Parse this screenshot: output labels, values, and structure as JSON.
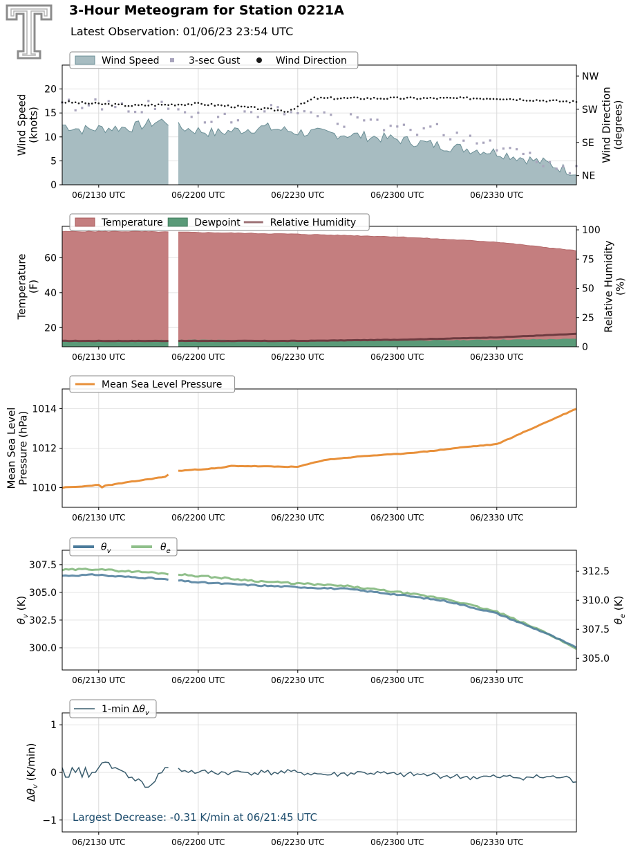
{
  "header": {
    "title": "3-Hour Meteogram for Station 0221A",
    "subtitle": "Latest Observation: 01/06/23 23:54 UTC",
    "logo_text": "T"
  },
  "colors": {
    "wind_fill": "#a7bcc1",
    "wind_line": "#6b8f96",
    "gust": "#a9a5bd",
    "direction": "#1a1a1a",
    "temperature": "#c47e7f",
    "dewpoint": "#5a9a78",
    "rh": "#6e3b40",
    "pressure": "#e8903a",
    "theta_v": "#4a7a9a",
    "theta_e": "#8fbf8a",
    "delta": "#3a5d6e",
    "annotation": "#1f4e6e",
    "logo": "#8c8c8c"
  },
  "x_ticks": [
    "06/2130 UTC",
    "06/2200 UTC",
    "06/2230 UTC",
    "06/2300 UTC",
    "06/2330 UTC"
  ],
  "chart_data": [
    {
      "type": "area",
      "panel": "wind",
      "x_range": [
        "06/21:19",
        "06/23:54"
      ],
      "ylabel": "Wind Speed\n(knots)",
      "ylabel2": "Wind Direction\n(degrees)",
      "ylim": [
        0,
        25
      ],
      "yticks": [
        "0",
        "5",
        "10",
        "15",
        "20"
      ],
      "y2_ticks": [
        "NE",
        "SE",
        "SW",
        "NW"
      ],
      "y2_values": [
        45,
        135,
        225,
        315
      ],
      "legend": [
        "Wind Speed",
        "3-sec Gust",
        "Wind Direction"
      ],
      "gaps": [
        [
          "06/21:31",
          "06/21:32"
        ],
        [
          "06/21:51",
          "06/21:54"
        ],
        [
          "06/22:07",
          "06/22:08"
        ],
        [
          "06/22:10",
          "06/22:11"
        ],
        [
          "06/22:12",
          "06/22:13"
        ]
      ],
      "series": [
        {
          "name": "Wind Speed",
          "x": [
            "06/21:19",
            "06/21:25",
            "06/21:31",
            "06/21:40",
            "06/21:50",
            "06/21:54",
            "06/22:05",
            "06/22:13",
            "06/22:20",
            "06/22:30",
            "06/22:45",
            "06/23:00",
            "06/23:15",
            "06/23:30",
            "06/23:45",
            "06/23:54"
          ],
          "values": [
            12.5,
            11.5,
            11.8,
            12.0,
            13.5,
            12.0,
            10.8,
            11.5,
            12.0,
            11.0,
            10.5,
            9.5,
            8.0,
            6.8,
            4.5,
            2.5
          ]
        },
        {
          "name": "3-sec Gust",
          "x": [
            "06/21:19",
            "06/21:30",
            "06/21:40",
            "06/21:50",
            "06/22:00",
            "06/22:10",
            "06/22:20",
            "06/22:30",
            "06/22:40",
            "06/22:50",
            "06/23:00",
            "06/23:10",
            "06/23:20",
            "06/23:30",
            "06/23:40",
            "06/23:54"
          ],
          "values": [
            16.5,
            17.0,
            16.5,
            16.0,
            14.5,
            14.5,
            15.5,
            15.0,
            14.0,
            13.0,
            12.5,
            11.5,
            10.5,
            8.5,
            6.0,
            3.5
          ]
        },
        {
          "name": "Wind Direction",
          "x": [
            "06/21:19",
            "06/21:40",
            "06/22:00",
            "06/22:15",
            "06/22:27",
            "06/22:35",
            "06/23:00",
            "06/23:30",
            "06/23:54"
          ],
          "values": [
            245,
            235,
            240,
            230,
            220,
            255,
            255,
            255,
            245
          ]
        }
      ]
    },
    {
      "type": "area",
      "panel": "thermo",
      "x_range": [
        "06/21:19",
        "06/23:54"
      ],
      "ylabel": "Temperature\n(F)",
      "ylabel2": "Relative Humidity\n(%)",
      "ylim": [
        9,
        78
      ],
      "yticks": [
        "20",
        "40",
        "60"
      ],
      "y2lim": [
        0,
        103
      ],
      "y2_ticks": [
        "0",
        "25",
        "50",
        "75",
        "100"
      ],
      "legend": [
        "Temperature",
        "Dewpoint",
        "Relative Humidity"
      ],
      "gaps": [
        [
          "06/21:31",
          "06/21:32"
        ],
        [
          "06/21:51",
          "06/21:54"
        ],
        [
          "06/22:07",
          "06/22:08"
        ],
        [
          "06/22:10",
          "06/22:11"
        ],
        [
          "06/22:12",
          "06/22:13"
        ]
      ],
      "series": [
        {
          "name": "Temperature",
          "x": [
            "06/21:19",
            "06/21:40",
            "06/22:00",
            "06/22:30",
            "06/23:00",
            "06/23:30",
            "06/23:54"
          ],
          "values": [
            75,
            75,
            74.5,
            73.5,
            72,
            69,
            64
          ]
        },
        {
          "name": "Dewpoint",
          "x": [
            "06/21:19",
            "06/22:00",
            "06/22:30",
            "06/23:00",
            "06/23:30",
            "06/23:54"
          ],
          "values": [
            12.5,
            13,
            12.5,
            12.5,
            13,
            13.5
          ]
        },
        {
          "name": "Relative Humidity",
          "x": [
            "06/21:19",
            "06/22:00",
            "06/22:30",
            "06/23:00",
            "06/23:30",
            "06/23:54"
          ],
          "values": [
            5,
            5,
            5,
            6,
            8,
            11
          ]
        }
      ]
    },
    {
      "type": "line",
      "panel": "pressure",
      "x_range": [
        "06/21:19",
        "06/23:54"
      ],
      "ylabel": "Mean Sea Level\nPressure (hPa)",
      "ylim": [
        1009,
        1015
      ],
      "yticks": [
        "1010",
        "1012",
        "1014"
      ],
      "legend": [
        "Mean Sea Level Pressure"
      ],
      "gaps": [
        [
          "06/21:31",
          "06/21:32"
        ],
        [
          "06/21:51",
          "06/21:54"
        ],
        [
          "06/22:07",
          "06/22:08"
        ],
        [
          "06/22:10",
          "06/22:11"
        ],
        [
          "06/22:12",
          "06/22:13"
        ]
      ],
      "series": [
        {
          "name": "Mean Sea Level Pressure",
          "x": [
            "06/21:19",
            "06/21:25",
            "06/21:30",
            "06/21:31",
            "06/21:32",
            "06/21:40",
            "06/21:50",
            "06/21:51",
            "06/21:54",
            "06/22:07",
            "06/22:10",
            "06/22:30",
            "06/22:38",
            "06/22:50",
            "06/23:00",
            "06/23:10",
            "06/23:20",
            "06/23:30",
            "06/23:40",
            "06/23:54"
          ],
          "values": [
            1010.0,
            1010.05,
            1010.15,
            1010.0,
            1010.1,
            1010.3,
            1010.55,
            1010.65,
            1010.85,
            1011.0,
            1011.1,
            1011.05,
            1011.4,
            1011.6,
            1011.7,
            1011.85,
            1012.05,
            1012.2,
            1012.95,
            1014.0
          ]
        }
      ]
    },
    {
      "type": "line",
      "panel": "theta",
      "x_range": [
        "06/21:19",
        "06/23:54"
      ],
      "ylabel": "θv (K)",
      "ylabel2": "θe (K)",
      "ylim": [
        298,
        308.8
      ],
      "yticks": [
        "300.0",
        "302.5",
        "305.0",
        "307.5"
      ],
      "y2lim": [
        304,
        314.3
      ],
      "y2_ticks": [
        "305.0",
        "307.5",
        "310.0",
        "312.5"
      ],
      "legend": [
        "θv",
        "θe"
      ],
      "gaps": [
        [
          "06/21:31",
          "06/21:32"
        ],
        [
          "06/21:51",
          "06/21:54"
        ],
        [
          "06/22:07",
          "06/22:08"
        ],
        [
          "06/22:10",
          "06/22:11"
        ],
        [
          "06/22:12",
          "06/22:13"
        ]
      ],
      "series": [
        {
          "name": "θv",
          "x": [
            "06/21:19",
            "06/21:31",
            "06/21:32",
            "06/21:45",
            "06/22:00",
            "06/22:20",
            "06/22:45",
            "06/23:00",
            "06/23:15",
            "06/23:30",
            "06/23:45",
            "06/23:54"
          ],
          "values": [
            306.5,
            306.6,
            306.5,
            306.3,
            305.9,
            305.6,
            305.3,
            304.8,
            304.2,
            303.1,
            301.3,
            300.0
          ]
        },
        {
          "name": "θe",
          "x": [
            "06/21:19",
            "06/21:31",
            "06/21:32",
            "06/21:45",
            "06/22:00",
            "06/22:20",
            "06/22:45",
            "06/23:00",
            "06/23:15",
            "06/23:30",
            "06/23:45",
            "06/23:54"
          ],
          "values": [
            312.6,
            312.7,
            312.6,
            312.4,
            312.1,
            311.6,
            311.2,
            310.7,
            310.1,
            309.0,
            307.2,
            305.8
          ]
        }
      ]
    },
    {
      "type": "line",
      "panel": "delta",
      "x_range": [
        "06/21:19",
        "06/23:54"
      ],
      "ylabel": "Δθv (K/min)",
      "ylim": [
        -1.25,
        1.25
      ],
      "yticks": [
        "−1",
        "0",
        "1"
      ],
      "legend": [
        "1-min Δθv"
      ],
      "annotation": "Largest Decrease: -0.31 K/min at 06/21:45 UTC",
      "gaps": [
        [
          "06/21:31",
          "06/21:32"
        ],
        [
          "06/21:51",
          "06/21:54"
        ],
        [
          "06/22:07",
          "06/22:08"
        ],
        [
          "06/22:10",
          "06/22:11"
        ],
        [
          "06/22:12",
          "06/22:13"
        ]
      ],
      "series": [
        {
          "name": "1-min Δθv",
          "x": [
            "06/21:19",
            "06/21:20",
            "06/21:21",
            "06/21:22",
            "06/21:23",
            "06/21:24",
            "06/21:25",
            "06/21:26",
            "06/21:27",
            "06/21:28",
            "06/21:29",
            "06/21:30",
            "06/21:31",
            "06/21:35",
            "06/21:40",
            "06/21:45",
            "06/21:50",
            "06/22:00",
            "06/22:10",
            "06/22:20",
            "06/22:30",
            "06/22:40",
            "06/22:50",
            "06/23:00",
            "06/23:10",
            "06/23:20",
            "06/23:30",
            "06/23:40",
            "06/23:50",
            "06/23:54"
          ],
          "values": [
            0.1,
            -0.1,
            -0.1,
            0.1,
            0.0,
            0.1,
            -0.1,
            0.1,
            -0.1,
            0.0,
            0.0,
            0.1,
            0.2,
            0.1,
            -0.1,
            -0.31,
            0.1,
            0.0,
            0.0,
            0.0,
            0.0,
            -0.05,
            0.0,
            -0.05,
            -0.05,
            -0.1,
            -0.1,
            -0.1,
            -0.1,
            -0.2
          ]
        }
      ]
    }
  ]
}
